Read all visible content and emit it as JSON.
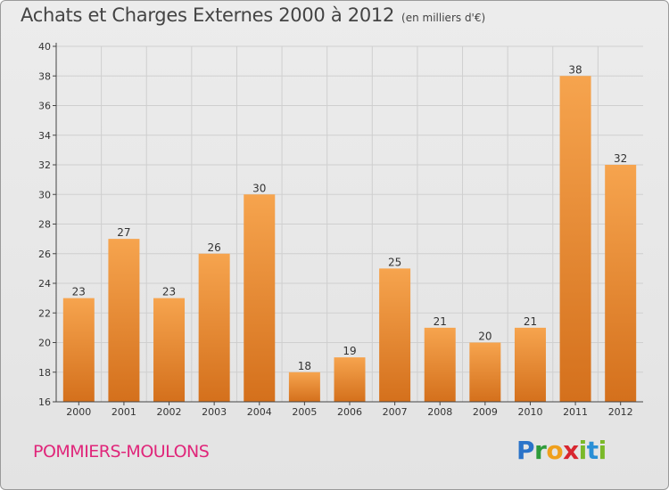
{
  "title": "Achats et Charges Externes 2000 à 2012",
  "unit": "(en milliers d'€)",
  "city": "POMMIERS-MOULONS",
  "brand": {
    "letters": [
      "P",
      "r",
      "o",
      "x",
      "i",
      "t",
      "i"
    ],
    "colors": [
      "#2a73c9",
      "#2e9b3a",
      "#f0a01c",
      "#d8262f",
      "#7ab929",
      "#2a8fd6",
      "#7ab929"
    ]
  },
  "colors": {
    "bar_top": "#f6a44e",
    "bar_bottom": "#d4701c",
    "grid": "#cfcfcf",
    "axis": "#444444",
    "text": "#333333"
  },
  "chart_data": {
    "type": "bar",
    "categories": [
      "2000",
      "2001",
      "2002",
      "2003",
      "2004",
      "2005",
      "2006",
      "2007",
      "2008",
      "2009",
      "2010",
      "2011",
      "2012"
    ],
    "values": [
      23,
      27,
      23,
      26,
      30,
      18,
      19,
      25,
      21,
      20,
      21,
      38,
      32
    ],
    "data_labels": [
      "23",
      "27",
      "23",
      "26",
      "30",
      "18",
      "19",
      "25",
      "21",
      "20",
      "21",
      "38",
      "32"
    ],
    "ylim": [
      16,
      40
    ],
    "yticks": [
      16,
      18,
      20,
      22,
      24,
      26,
      28,
      30,
      32,
      34,
      36,
      38,
      40
    ],
    "grid": true,
    "xlabel": "",
    "ylabel": ""
  }
}
